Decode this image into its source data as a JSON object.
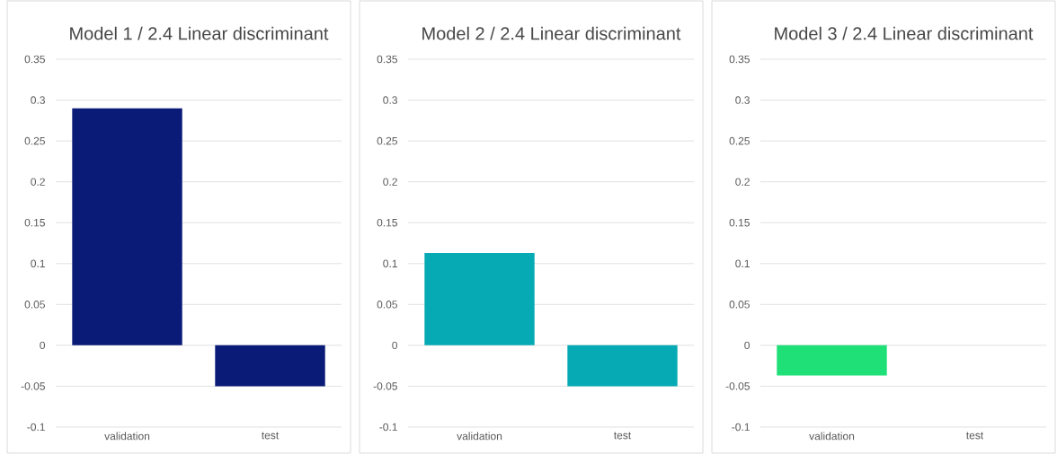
{
  "chart_data": [
    {
      "type": "bar",
      "title": "Model 1 / 2.4 Linear discriminant",
      "categories": [
        "validation",
        "test"
      ],
      "values": [
        0.29,
        -0.05
      ],
      "color": "#0a1a77",
      "ylim": [
        -0.1,
        0.35
      ],
      "yticks": [
        -0.1,
        -0.05,
        0,
        0.05,
        0.1,
        0.15,
        0.2,
        0.25,
        0.3,
        0.35
      ],
      "grid": "y"
    },
    {
      "type": "bar",
      "title": "Model 2 / 2.4 Linear discriminant",
      "categories": [
        "validation",
        "test"
      ],
      "values": [
        0.113,
        -0.05
      ],
      "color": "#06aab5",
      "ylim": [
        -0.1,
        0.35
      ],
      "yticks": [
        -0.1,
        -0.05,
        0,
        0.05,
        0.1,
        0.15,
        0.2,
        0.25,
        0.3,
        0.35
      ],
      "grid": "y"
    },
    {
      "type": "bar",
      "title": "Model 3 / 2.4 Linear discriminant",
      "categories": [
        "validation",
        "test"
      ],
      "values": [
        -0.037,
        null
      ],
      "color": "#1ee077",
      "ylim": [
        -0.1,
        0.35
      ],
      "yticks": [
        -0.1,
        -0.05,
        0,
        0.05,
        0.1,
        0.15,
        0.2,
        0.25,
        0.3,
        0.35
      ],
      "grid": "y"
    }
  ]
}
